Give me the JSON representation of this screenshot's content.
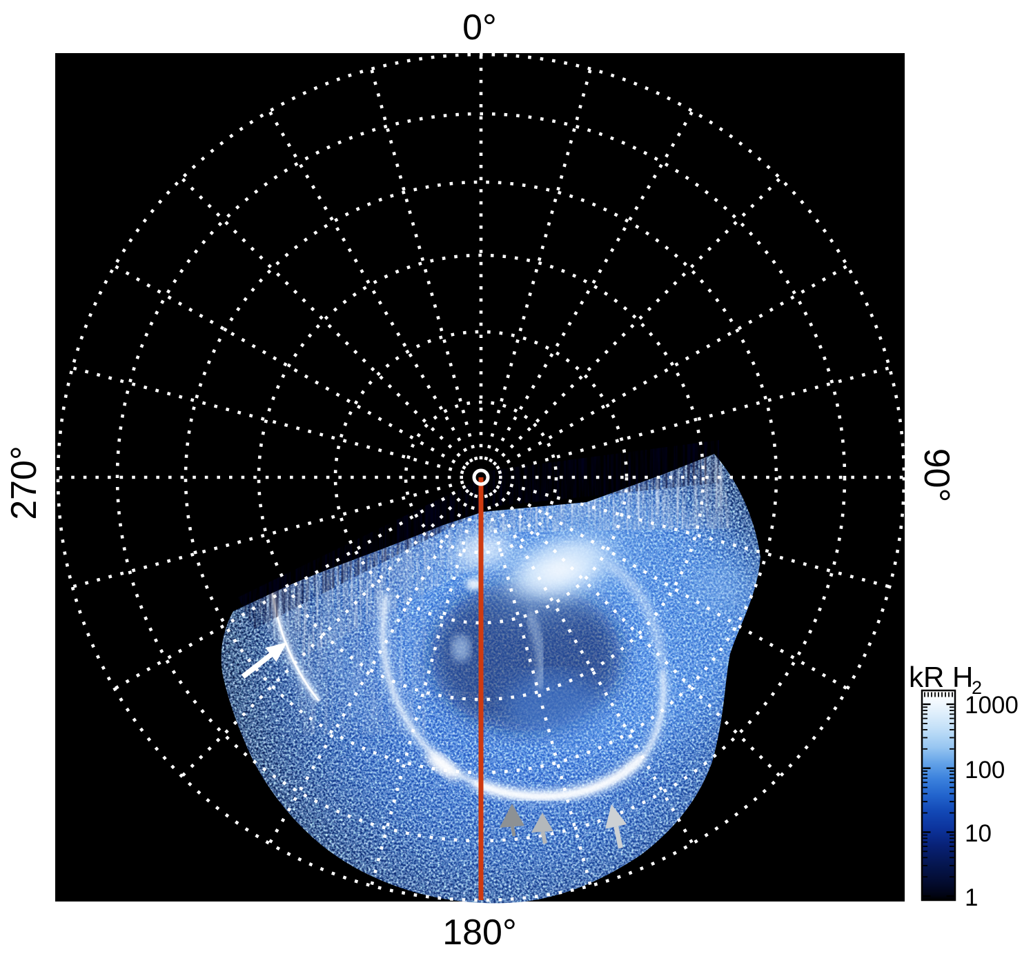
{
  "axis_labels": {
    "top": "0°",
    "right": "90°",
    "bottom": "180°",
    "left": "270°"
  },
  "colorbar": {
    "title_main": "kR H",
    "title_sub": "2",
    "ticks": [
      "1000",
      "100",
      "10",
      "1"
    ],
    "scale": "log",
    "top_color": "#ffffff",
    "bottom_color": "#000000"
  },
  "colors": {
    "meridian": "#ce3a10",
    "grid_dots": "#ffffff",
    "plot_background": "#000000",
    "page_background": "#ffffff",
    "aurora_base_blue": "#2258c4",
    "aurora_bright": "#ffffff",
    "arrow_white": "#ffffff",
    "arrow_gray_dark": "#8d9194",
    "arrow_gray_mid": "#b4b8bb",
    "arrow_gray_light": "#cdd1d4"
  },
  "chart_data": {
    "type": "heatmap",
    "projection": "polar",
    "title": "",
    "units_label": "kR H2",
    "color_scale": {
      "type": "log",
      "min": 1,
      "max": 1000,
      "tick_values": [
        1000,
        100,
        10,
        1
      ],
      "colormap": "black -> dark navy -> blue -> light blue -> white"
    },
    "angular_axis": {
      "tick_labels": [
        "0°",
        "90°",
        "180°",
        "270°"
      ],
      "spoke_step_deg": 15,
      "direction_labels_rotated": true
    },
    "radial_axis": {
      "n_rings": 6,
      "ring_spacing": "equal latitude steps (Lambert-like), pole at center"
    },
    "data_coverage": {
      "azimuth_start_deg": 95,
      "azimuth_end_deg": 243,
      "description": "Auroral H2 emission swath fills lower sector of polar grid; remaining sector is black (no data)."
    },
    "features": [
      "bright saturated auroral patches near top of data swath right of the 180° meridian",
      "main auroral oval arc encircling a darker interior, brightest along its lower-right limb",
      "narrow very bright arc on the left (dusk) side indicated by a white arrow",
      "fainter secondary arc parallel to the narrow dusk arc",
      "low-latitude bright arc segment at bottom right indicated by gray/white arrows",
      "radial streak artifacts along swath edges"
    ],
    "annotations": [
      {
        "type": "meridian-line",
        "angle_deg": 180,
        "color": "#ce3a10"
      },
      {
        "type": "pole-marker",
        "shape": "white ring at pole"
      },
      {
        "type": "arrow",
        "color": "white",
        "points_to": "narrow bright dusk-side arc"
      },
      {
        "type": "arrowhead",
        "color": "dark gray",
        "points_to": "bottom emission feature 1"
      },
      {
        "type": "arrow",
        "color": "mid gray",
        "points_to": "bottom emission feature 2"
      },
      {
        "type": "arrow",
        "color": "light gray",
        "points_to": "bottom-right bright arc"
      }
    ]
  }
}
